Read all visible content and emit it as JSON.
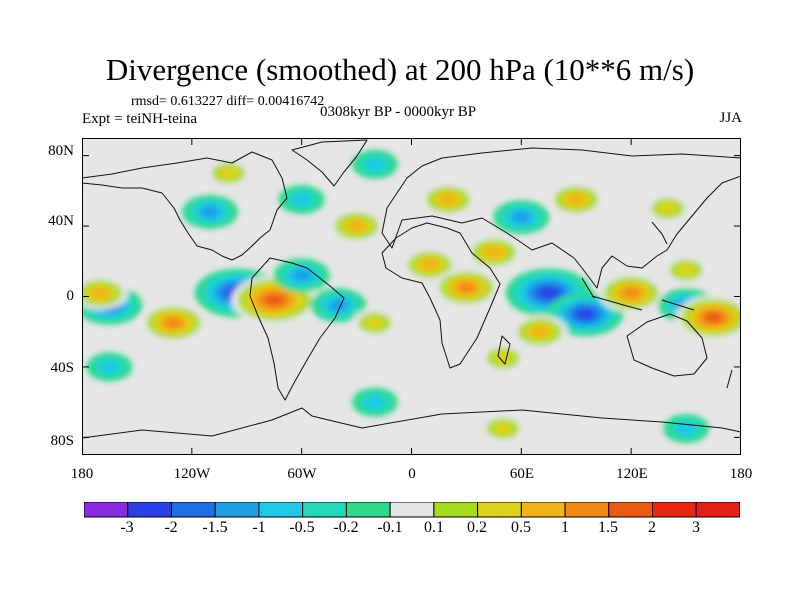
{
  "title": "Divergence (smoothed) at 200 hPa (10**6 m/s)",
  "stats": "rmsd= 0.613227 diff= 0.00416742",
  "experiment": "Expt = teiNH-teina",
  "period": "0308kyr BP - 0000kyr BP",
  "season": "JJA",
  "map": {
    "projection": "cylindrical equidistant",
    "lon_range": [
      -180,
      180
    ],
    "lat_range": [
      -90,
      90
    ],
    "lat_labels": [
      "80N",
      "40N",
      "0",
      "40S",
      "80S"
    ],
    "lat_values": [
      80,
      40,
      0,
      -40,
      -80
    ],
    "lon_labels": [
      "180",
      "120W",
      "60W",
      "0",
      "60E",
      "120E",
      "180"
    ],
    "lon_values": [
      -180,
      -120,
      -60,
      0,
      60,
      120,
      180
    ]
  },
  "colorbar": {
    "labels": [
      "-3",
      "-2",
      "-1.5",
      "-1",
      "-0.5",
      "-0.2",
      "-0.1",
      "0.1",
      "0.2",
      "0.5",
      "1",
      "1.5",
      "2",
      "3"
    ],
    "colors": [
      "#8a2be2",
      "#2b3fe6",
      "#1e6fe6",
      "#1e9fe6",
      "#1ec8e6",
      "#22d8b8",
      "#2fd88c",
      "#e6e6e6",
      "#a6dc1e",
      "#dcd21e",
      "#f0b418",
      "#f08a14",
      "#ea5a12",
      "#e62810",
      "#e61e14"
    ]
  },
  "chart_data": {
    "type": "heatmap",
    "variable": "Divergence (smoothed) at 200 hPa",
    "units": "10**6 m/s",
    "levels": [
      -3,
      -2,
      -1.5,
      -1,
      -0.5,
      -0.2,
      -0.1,
      0.1,
      0.2,
      0.5,
      1,
      1.5,
      2,
      3
    ],
    "anomaly_features": [
      {
        "lon": -95,
        "lat": 2,
        "value": -2.5
      },
      {
        "lon": -75,
        "lat": -2,
        "value": 2.5
      },
      {
        "lon": -130,
        "lat": -15,
        "value": 1.5
      },
      {
        "lon": -165,
        "lat": -5,
        "value": -1.5
      },
      {
        "lon": -170,
        "lat": 2,
        "value": 1
      },
      {
        "lon": -60,
        "lat": 12,
        "value": -1
      },
      {
        "lon": -40,
        "lat": -5,
        "value": -1
      },
      {
        "lon": -20,
        "lat": -15,
        "value": 0.5
      },
      {
        "lon": -110,
        "lat": 48,
        "value": -1
      },
      {
        "lon": -60,
        "lat": 55,
        "value": -0.5
      },
      {
        "lon": -30,
        "lat": 40,
        "value": 1
      },
      {
        "lon": -100,
        "lat": 70,
        "value": 0.5
      },
      {
        "lon": -20,
        "lat": 75,
        "value": -0.5
      },
      {
        "lon": 10,
        "lat": 18,
        "value": 1
      },
      {
        "lon": 30,
        "lat": 5,
        "value": 1.5
      },
      {
        "lon": 45,
        "lat": 25,
        "value": 1
      },
      {
        "lon": 20,
        "lat": 55,
        "value": 1
      },
      {
        "lon": 60,
        "lat": 45,
        "value": -1
      },
      {
        "lon": 90,
        "lat": 55,
        "value": 1
      },
      {
        "lon": 140,
        "lat": 50,
        "value": 0.5
      },
      {
        "lon": 75,
        "lat": 2,
        "value": -2.5
      },
      {
        "lon": 95,
        "lat": -10,
        "value": -2
      },
      {
        "lon": 120,
        "lat": 2,
        "value": 1.5
      },
      {
        "lon": 150,
        "lat": -5,
        "value": -1
      },
      {
        "lon": 165,
        "lat": -12,
        "value": 2
      },
      {
        "lon": 150,
        "lat": 15,
        "value": 0.5
      },
      {
        "lon": 70,
        "lat": -20,
        "value": 1
      },
      {
        "lon": 50,
        "lat": -35,
        "value": 0.5
      },
      {
        "lon": -20,
        "lat": -60,
        "value": -0.5
      },
      {
        "lon": 50,
        "lat": -75,
        "value": 0.5
      },
      {
        "lon": 150,
        "lat": -75,
        "value": -0.5
      },
      {
        "lon": -165,
        "lat": -40,
        "value": -0.5
      }
    ]
  }
}
